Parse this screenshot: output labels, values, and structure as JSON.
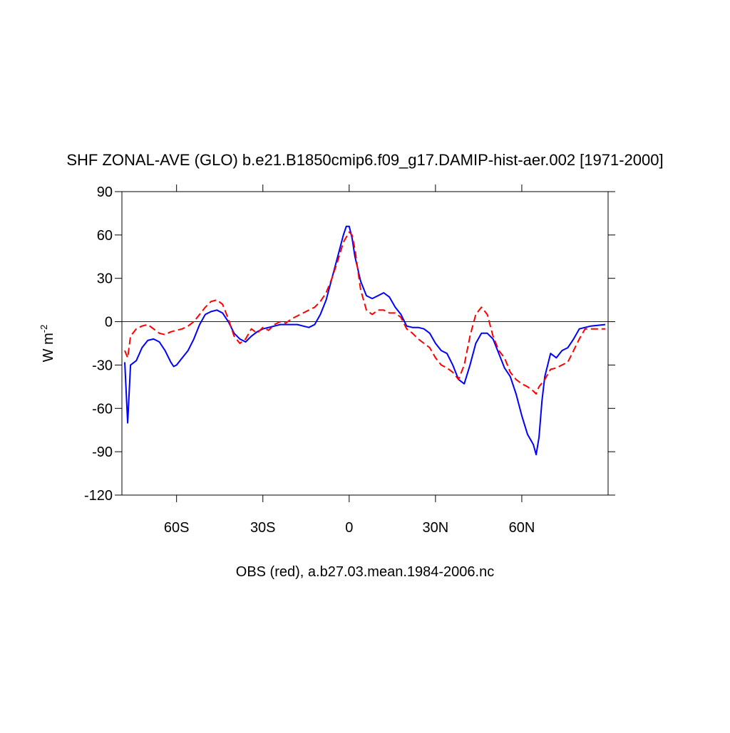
{
  "chart_data": {
    "type": "line",
    "title": "SHF ZONAL-AVE (GLO) b.e21.B1850cmip6.f09_g17.DAMIP-hist-aer.002 [1971-2000]",
    "x_label": "OBS (red), a.b27.03.mean.1984-2006.nc",
    "y_label": "W m",
    "y_label_superscript": "-2",
    "xlim": [
      -79,
      90
    ],
    "ylim": [
      -120,
      90
    ],
    "xticks": [
      {
        "value": -60,
        "label": "60S"
      },
      {
        "value": -30,
        "label": "30S"
      },
      0,
      {
        "value": 30,
        "label": "30N"
      },
      {
        "value": 60,
        "label": "60N"
      }
    ],
    "yticks": [
      90,
      60,
      30,
      0,
      -30,
      -60,
      -90,
      -120
    ],
    "zero_line": true,
    "series": [
      {
        "color": "#0000ff",
        "dash": false,
        "x": [
          -78,
          -77,
          -76,
          -74,
          -72,
          -70,
          -68,
          -66,
          -64,
          -62,
          -61,
          -60,
          -58,
          -56,
          -54,
          -52,
          -50,
          -48,
          -46,
          -44,
          -42,
          -40,
          -38,
          -36,
          -34,
          -32,
          -30,
          -28,
          -26,
          -24,
          -22,
          -20,
          -18,
          -16,
          -14,
          -12,
          -10,
          -8,
          -6,
          -4,
          -2,
          -1,
          0,
          1,
          2,
          4,
          6,
          8,
          10,
          12,
          14,
          16,
          18,
          20,
          22,
          24,
          26,
          28,
          30,
          32,
          34,
          36,
          38,
          40,
          42,
          44,
          46,
          48,
          50,
          52,
          54,
          56,
          58,
          60,
          62,
          64,
          65,
          66,
          67,
          68,
          70,
          72,
          74,
          76,
          78,
          80,
          84,
          89
        ],
        "values": [
          -28,
          -70,
          -30,
          -27,
          -18,
          -13,
          -12,
          -14,
          -20,
          -28,
          -31,
          -30,
          -25,
          -20,
          -12,
          -2,
          5,
          7,
          8,
          6,
          0,
          -8,
          -12,
          -14,
          -10,
          -7,
          -5,
          -4,
          -3,
          -2,
          -2,
          -2,
          -2,
          -3,
          -4,
          -2,
          5,
          15,
          30,
          45,
          60,
          66,
          66,
          58,
          45,
          28,
          18,
          16,
          18,
          20,
          17,
          10,
          5,
          -3,
          -4,
          -4,
          -5,
          -8,
          -15,
          -20,
          -22,
          -30,
          -40,
          -43,
          -30,
          -15,
          -8,
          -8,
          -12,
          -22,
          -32,
          -38,
          -50,
          -65,
          -78,
          -85,
          -92,
          -80,
          -55,
          -38,
          -22,
          -25,
          -20,
          -18,
          -12,
          -5,
          -3,
          -2
        ]
      },
      {
        "color": "#ff0000",
        "dash": true,
        "x": [
          -78,
          -77,
          -76,
          -74,
          -72,
          -70,
          -68,
          -66,
          -64,
          -62,
          -60,
          -58,
          -56,
          -54,
          -52,
          -50,
          -48,
          -46,
          -44,
          -42,
          -40,
          -38,
          -36,
          -34,
          -32,
          -30,
          -28,
          -26,
          -24,
          -22,
          -20,
          -18,
          -16,
          -14,
          -12,
          -10,
          -8,
          -6,
          -4,
          -2,
          0,
          1,
          2,
          4,
          6,
          8,
          10,
          12,
          14,
          16,
          18,
          20,
          22,
          24,
          26,
          28,
          30,
          32,
          34,
          36,
          38,
          40,
          42,
          44,
          46,
          48,
          50,
          52,
          54,
          56,
          58,
          60,
          62,
          64,
          65,
          66,
          68,
          70,
          72,
          74,
          76,
          78,
          80,
          82,
          86,
          89
        ],
        "values": [
          -20,
          -25,
          -10,
          -5,
          -3,
          -2,
          -5,
          -8,
          -9,
          -7,
          -6,
          -5,
          -3,
          0,
          5,
          10,
          14,
          15,
          12,
          2,
          -10,
          -15,
          -12,
          -5,
          -8,
          -4,
          -6,
          -2,
          0,
          -1,
          2,
          4,
          6,
          8,
          10,
          14,
          20,
          30,
          42,
          55,
          62,
          60,
          50,
          22,
          8,
          5,
          8,
          8,
          6,
          6,
          3,
          -5,
          -8,
          -12,
          -15,
          -18,
          -25,
          -30,
          -32,
          -35,
          -40,
          -30,
          -10,
          5,
          10,
          5,
          -10,
          -20,
          -25,
          -35,
          -40,
          -43,
          -45,
          -48,
          -50,
          -45,
          -40,
          -33,
          -32,
          -30,
          -28,
          -20,
          -12,
          -5,
          -5,
          -5
        ]
      }
    ]
  }
}
